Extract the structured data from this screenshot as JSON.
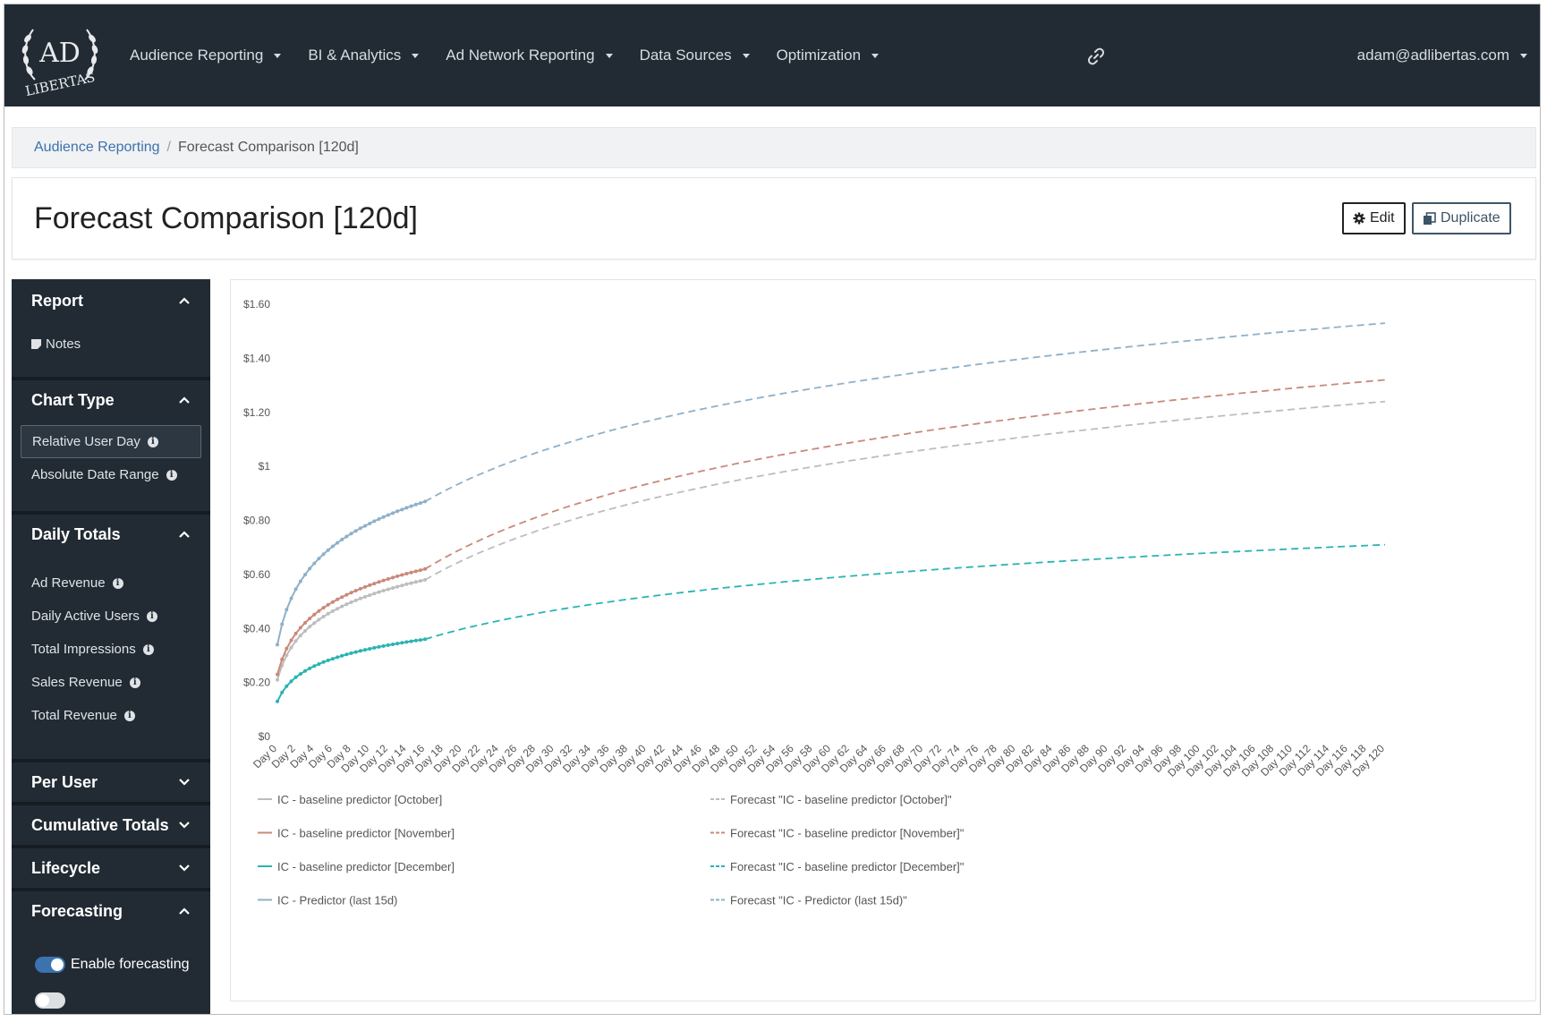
{
  "navbar": {
    "logo_text": "AD LIBERTAS",
    "menu": [
      {
        "label": "Audience Reporting"
      },
      {
        "label": "BI & Analytics"
      },
      {
        "label": "Ad Network Reporting"
      },
      {
        "label": "Data Sources"
      },
      {
        "label": "Optimization"
      }
    ],
    "link_icon": "link-icon",
    "user": "adam@adlibertas.com"
  },
  "breadcrumb": {
    "parent": "Audience Reporting",
    "separator": "/",
    "current": "Forecast Comparison [120d]"
  },
  "page": {
    "title": "Forecast Comparison [120d]",
    "edit_label": "Edit",
    "duplicate_label": "Duplicate"
  },
  "sidebar": {
    "report": {
      "title": "Report",
      "items": [
        {
          "label": "Notes"
        }
      ]
    },
    "chart_type": {
      "title": "Chart Type",
      "items": [
        {
          "label": "Relative User Day",
          "active": true
        },
        {
          "label": "Absolute Date Range"
        }
      ]
    },
    "daily_totals": {
      "title": "Daily Totals",
      "items": [
        {
          "label": "Ad Revenue"
        },
        {
          "label": "Daily Active Users"
        },
        {
          "label": "Total Impressions"
        },
        {
          "label": "Sales Revenue"
        },
        {
          "label": "Total Revenue"
        }
      ]
    },
    "per_user": {
      "title": "Per User"
    },
    "cumulative": {
      "title": "Cumulative Totals"
    },
    "lifecycle": {
      "title": "Lifecycle"
    },
    "forecasting": {
      "title": "Forecasting",
      "toggle_label": "Enable forecasting",
      "toggle_on": true
    }
  },
  "chart_data": {
    "type": "line",
    "y_ticks": [
      "$0",
      "$0.20",
      "$0.40",
      "$0.60",
      "$0.80",
      "$1",
      "$1.20",
      "$1.40",
      "$1.60"
    ],
    "ylim": [
      0,
      1.6
    ],
    "x_range": [
      0,
      120
    ],
    "x_tick_step": 2,
    "x_tick_prefix": "Day ",
    "actual_days": 16,
    "series": [
      {
        "name": "IC - baseline predictor [October]",
        "color": "#bdbdbd",
        "d0": 0.21,
        "d16": 0.58,
        "d120": 1.24
      },
      {
        "name": "IC - baseline predictor [November]",
        "color": "#c9897a",
        "d0": 0.23,
        "d16": 0.62,
        "d120": 1.32
      },
      {
        "name": "IC - baseline predictor [December]",
        "color": "#2bb3b3",
        "d0": 0.13,
        "d16": 0.36,
        "d120": 0.71
      },
      {
        "name": "IC - Predictor (last 15d)",
        "color": "#8eb0c9",
        "d0": 0.34,
        "d16": 0.87,
        "d120": 1.53
      }
    ],
    "legend": [
      {
        "label": "IC - baseline predictor [October]",
        "color": "#bdbdbd",
        "dashed": false
      },
      {
        "label": "Forecast \"IC - baseline predictor [October]\"",
        "color": "#bdbdbd",
        "dashed": true
      },
      {
        "label": "IC - baseline predictor [November]",
        "color": "#c9897a",
        "dashed": false
      },
      {
        "label": "Forecast \"IC - baseline predictor [November]\"",
        "color": "#c9897a",
        "dashed": true
      },
      {
        "label": "IC - baseline predictor [December]",
        "color": "#2bb3b3",
        "dashed": false
      },
      {
        "label": "Forecast \"IC - baseline predictor [December]\"",
        "color": "#2bb3b3",
        "dashed": true
      },
      {
        "label": "IC - Predictor (last 15d)",
        "color": "#8eb0c9",
        "dashed": false
      },
      {
        "label": "Forecast \"IC - Predictor (last 15d)\"",
        "color": "#8eb0c9",
        "dashed": true
      }
    ]
  }
}
